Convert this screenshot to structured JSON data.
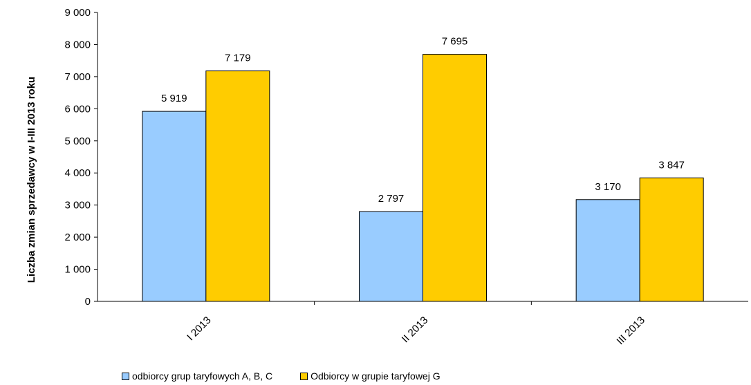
{
  "chart_data": {
    "type": "bar",
    "categories": [
      "I 2013",
      "II 2013",
      "III 2013"
    ],
    "series": [
      {
        "name": "odbiorcy grup taryfowych A, B, C",
        "values": [
          5919,
          2797,
          3170
        ],
        "labels": [
          "5 919",
          "2 797",
          "3 170"
        ],
        "color": "#99CCFF"
      },
      {
        "name": "Odbiorcy w grupie taryfowej G",
        "values": [
          7179,
          7695,
          3847
        ],
        "labels": [
          "7 179",
          "7 695",
          "3 847"
        ],
        "color": "#FFCC00"
      }
    ],
    "ylabel": "Liczba zmian sprzedawcy w I-III 2013 roku",
    "xlabel": "",
    "ylim": [
      0,
      9000
    ],
    "yticks": [
      0,
      1000,
      2000,
      3000,
      4000,
      5000,
      6000,
      7000,
      8000,
      9000
    ],
    "ytick_labels": [
      "0",
      "1 000",
      "2 000",
      "3 000",
      "4 000",
      "5 000",
      "6 000",
      "7 000",
      "8 000",
      "9 000"
    ],
    "grid": false,
    "legend_position": "bottom"
  }
}
